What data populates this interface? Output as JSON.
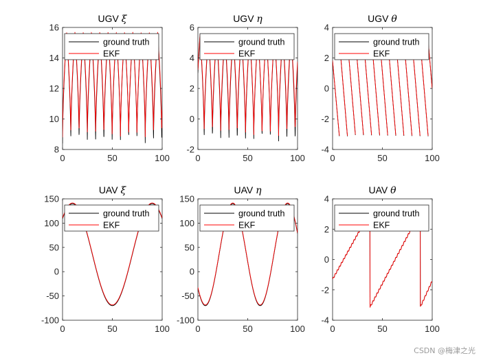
{
  "watermark": "CSDN @梅津之光",
  "colors": {
    "ground_truth": "#000000",
    "ekf": "#ff0000",
    "axes": "#262626",
    "background": "#ffffff"
  },
  "chart_data": [
    {
      "type": "line",
      "title": "UGV ξ",
      "title_text": "UGV",
      "title_symbol": "ξ",
      "xlim": [
        0,
        100
      ],
      "ylim": [
        8,
        16
      ],
      "xticks": [
        0,
        50,
        100
      ],
      "yticks": [
        8,
        10,
        12,
        14,
        16
      ],
      "grid": false,
      "legend": [
        "ground truth",
        "EKF"
      ],
      "legend_position": "top",
      "wave": {
        "kind": "periodic",
        "period": 8.3,
        "phase": 0,
        "max": 15.6,
        "min": 8.4,
        "clip": true
      },
      "series": [
        {
          "name": "ground truth",
          "x": [
            0,
            5,
            9.5,
            14,
            18,
            22.5,
            26.5,
            31,
            35.5,
            39.5,
            44,
            48,
            52.5,
            57,
            61,
            65.5,
            69.5,
            74,
            78.5,
            82.5,
            87,
            91,
            95.5,
            100
          ],
          "y": [
            8.2,
            15.6,
            8.7,
            15.6,
            8.4,
            15.6,
            8.7,
            15.6,
            8.5,
            15.6,
            8.6,
            15.6,
            8.6,
            15.6,
            8.6,
            15.6,
            8.6,
            15.6,
            8.6,
            15.6,
            8.6,
            15.6,
            8.8,
            10.5
          ]
        },
        {
          "name": "EKF",
          "x": [
            0,
            5,
            9.5,
            14,
            18,
            22.5,
            26.5,
            31,
            35.5,
            39.5,
            44,
            48,
            52.5,
            57,
            61,
            65.5,
            69.5,
            74,
            78.5,
            82.5,
            87,
            91,
            95.5,
            100
          ],
          "y": [
            8.1,
            15.7,
            9.4,
            15.8,
            9.2,
            15.7,
            9.2,
            15.7,
            9.0,
            15.7,
            9.0,
            15.7,
            9.0,
            15.7,
            8.9,
            15.7,
            8.9,
            15.7,
            8.9,
            15.7,
            8.9,
            15.7,
            9.1,
            10.6
          ]
        }
      ]
    },
    {
      "type": "line",
      "title": "UGV η",
      "title_text": "UGV",
      "title_symbol": "η",
      "xlim": [
        0,
        100
      ],
      "ylim": [
        -2,
        6
      ],
      "xticks": [
        0,
        50,
        100
      ],
      "yticks": [
        -2,
        0,
        2,
        4,
        6
      ],
      "grid": false,
      "legend": [
        "ground truth",
        "EKF"
      ],
      "legend_position": "top",
      "wave": {
        "kind": "periodic",
        "period": 8.3,
        "phase": 2,
        "max": 5.5,
        "min": -1.5,
        "clip": true
      },
      "series": [
        {
          "name": "ground truth",
          "x": [
            0,
            3,
            7.5,
            11.5,
            16,
            20,
            24.5,
            29,
            33,
            37.5,
            41.5,
            46,
            50.5,
            54.5,
            59,
            63,
            67.5,
            72,
            76,
            80.5,
            84.5,
            89,
            93.5,
            97.5,
            100
          ],
          "y": [
            3.0,
            -0.5,
            5.0,
            -1.2,
            5.0,
            -1.3,
            5.0,
            -1.3,
            5.0,
            -1.4,
            5.0,
            -1.4,
            5.0,
            -1.4,
            5.0,
            -1.3,
            5.0,
            -1.3,
            5.0,
            -1.3,
            5.0,
            -1.2,
            5.0,
            -1.1,
            5.1
          ]
        },
        {
          "name": "EKF",
          "x": [
            0,
            3,
            7.5,
            11.5,
            16,
            20,
            24.5,
            29,
            33,
            37.5,
            41.5,
            46,
            50.5,
            54.5,
            59,
            63,
            67.5,
            72,
            76,
            80.5,
            84.5,
            89,
            93.5,
            97.5,
            100
          ],
          "y": [
            3.1,
            -0.4,
            5.1,
            -1.0,
            5.1,
            -1.1,
            5.1,
            -1.0,
            5.1,
            -1.1,
            5.1,
            -1.1,
            5.1,
            -1.0,
            5.1,
            -1.0,
            5.1,
            -0.9,
            5.1,
            -0.9,
            5.1,
            -0.9,
            5.1,
            -0.8,
            5.2
          ]
        }
      ]
    },
    {
      "type": "line",
      "title": "UGV θ",
      "title_text": "UGV",
      "title_symbol": "θ",
      "xlim": [
        0,
        100
      ],
      "ylim": [
        -4,
        4
      ],
      "xticks": [
        0,
        50,
        100
      ],
      "yticks": [
        -4,
        -2,
        0,
        2,
        4
      ],
      "grid": false,
      "legend": [
        "ground truth",
        "EKF"
      ],
      "legend_position": "top",
      "wave": {
        "kind": "sawtooth",
        "period": 8.1,
        "first_reset": 6.8,
        "max": 3.14,
        "min": -3.14,
        "start": 1.8,
        "end": 0.5
      },
      "series": [
        {
          "name": "ground truth",
          "x": [
            0,
            6.8,
            14.9,
            23.0,
            31.1,
            39.2,
            47.3,
            55.4,
            63.5,
            71.6,
            79.7,
            87.8,
            95.9,
            100
          ],
          "y": [
            1.8,
            -3.1,
            -3.1,
            -3.1,
            -3.1,
            -3.1,
            -3.1,
            -3.1,
            -3.1,
            -3.1,
            -3.1,
            -3.1,
            -3.1,
            0.5
          ]
        },
        {
          "name": "EKF",
          "x": [
            0,
            6.8,
            14.9,
            23.0,
            31.1,
            39.2,
            47.3,
            55.4,
            63.5,
            71.6,
            79.7,
            87.8,
            95.9,
            100
          ],
          "y": [
            1.9,
            -3.1,
            -3.1,
            -3.1,
            -3.1,
            -3.1,
            -3.1,
            -3.1,
            -3.1,
            -3.1,
            -3.1,
            -3.1,
            -3.1,
            0.6
          ]
        }
      ]
    },
    {
      "type": "line",
      "title": "UAV ξ",
      "title_text": "UAV",
      "title_symbol": "ξ",
      "xlim": [
        0,
        100
      ],
      "ylim": [
        -100,
        150
      ],
      "xticks": [
        0,
        50,
        100
      ],
      "yticks": [
        -100,
        -50,
        0,
        50,
        100,
        150
      ],
      "grid": false,
      "legend": [
        "ground truth",
        "EKF"
      ],
      "legend_position": "top",
      "wave": {
        "kind": "cosine",
        "center": 35,
        "amplitude": 105,
        "period": 80,
        "peak_at": 10
      },
      "series": [
        {
          "name": "ground truth",
          "x": [
            0,
            10,
            20,
            30,
            40,
            50,
            60,
            70,
            80,
            90,
            100
          ],
          "y": [
            -55,
            140,
            121,
            45,
            -37,
            -70,
            -37,
            45,
            121,
            140,
            -70
          ]
        },
        {
          "name": "EKF",
          "x": [
            0,
            10,
            20,
            30,
            40,
            50,
            60,
            70,
            80,
            90,
            100
          ],
          "y": [
            -52,
            140,
            120,
            44,
            -38,
            -71,
            -38,
            44,
            121,
            140,
            -69
          ]
        }
      ]
    },
    {
      "type": "line",
      "title": "UAV η",
      "title_text": "UAV",
      "title_symbol": "η",
      "xlim": [
        0,
        100
      ],
      "ylim": [
        -100,
        150
      ],
      "xticks": [
        0,
        50,
        100
      ],
      "yticks": [
        -100,
        -50,
        0,
        50,
        100,
        150
      ],
      "grid": false,
      "legend": [
        "ground truth",
        "EKF"
      ],
      "legend_position": "top",
      "wave": {
        "kind": "cosine",
        "center": 35,
        "amplitude": 105,
        "period": 55,
        "peak_at": 35,
        "tail_end": 30
      },
      "series": [
        {
          "name": "ground truth",
          "x": [
            0,
            10,
            20,
            30,
            35,
            40,
            50,
            60,
            70,
            80,
            90,
            100
          ],
          "y": [
            5,
            -68,
            -45,
            90,
            140,
            122,
            10,
            -55,
            5,
            100,
            135,
            30
          ]
        },
        {
          "name": "EKF",
          "x": [
            0,
            10,
            20,
            30,
            35,
            40,
            50,
            60,
            70,
            80,
            90,
            100
          ],
          "y": [
            8,
            -70,
            -46,
            89,
            140,
            120,
            8,
            -56,
            4,
            99,
            135,
            32
          ]
        }
      ]
    },
    {
      "type": "line",
      "title": "UAV θ",
      "title_text": "UAV",
      "title_symbol": "θ",
      "xlim": [
        0,
        100
      ],
      "ylim": [
        -4,
        4
      ],
      "xticks": [
        0,
        50,
        100
      ],
      "yticks": [
        -4,
        -2,
        0,
        2,
        4
      ],
      "grid": false,
      "legend": [
        "ground truth",
        "EKF"
      ],
      "legend_position": "top",
      "wave": {
        "kind": "sawtooth_segments",
        "segments": [
          [
            0,
            -1.3,
            37.5,
            3.14
          ],
          [
            37.5,
            -3.14,
            88,
            3.14
          ],
          [
            88,
            -3.14,
            100,
            -1.4
          ]
        ]
      },
      "series": [
        {
          "name": "ground truth",
          "x": [
            0,
            37.5,
            37.6,
            88,
            88.1,
            100
          ],
          "y": [
            -1.3,
            3.1,
            -3.1,
            3.1,
            -3.1,
            -1.4
          ]
        },
        {
          "name": "EKF",
          "x": [
            0,
            37.5,
            37.6,
            88,
            88.1,
            100
          ],
          "y": [
            -1.2,
            3.1,
            -3.1,
            3.1,
            -3.1,
            -1.4
          ]
        }
      ]
    }
  ]
}
